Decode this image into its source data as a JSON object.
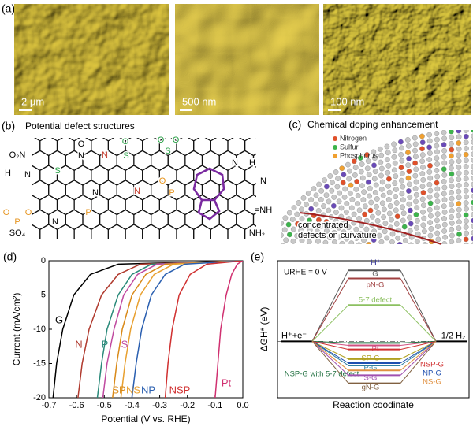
{
  "figure": {
    "a": {
      "label": "(a)",
      "scale_bars": [
        "2 μm",
        "500 nm",
        "100 nm"
      ]
    },
    "b": {
      "label": "(b)",
      "title": "Potential defect structures",
      "atoms": [
        {
          "text": "O₂N",
          "color": "#000000"
        },
        {
          "text": "O",
          "color": "#000000"
        },
        {
          "text": "N",
          "color": "#000000"
        },
        {
          "text": "N",
          "color": "#c0392b"
        },
        {
          "text": "O",
          "color": "#27a045"
        },
        {
          "text": "S",
          "color": "#27a045"
        },
        {
          "text": "O",
          "color": "#27a045"
        },
        {
          "text": "S",
          "color": "#27a045"
        },
        {
          "text": "O",
          "color": "#27a045"
        },
        {
          "text": "S",
          "color": "#27a045"
        },
        {
          "text": "H",
          "color": "#000000"
        },
        {
          "text": "N",
          "color": "#000000"
        },
        {
          "text": "N",
          "color": "#000000"
        },
        {
          "text": "N",
          "color": "#c0392b"
        },
        {
          "text": "O",
          "color": "#e69520"
        },
        {
          "text": "P",
          "color": "#e69520"
        },
        {
          "text": "O",
          "color": "#e69520"
        },
        {
          "text": "N",
          "color": "#000000"
        },
        {
          "text": "P",
          "color": "#e69520"
        },
        {
          "text": "O",
          "color": "#e69520"
        },
        {
          "text": "P",
          "color": "#e69520"
        },
        {
          "text": "N",
          "color": "#000000"
        },
        {
          "text": "H",
          "color": "#000000"
        },
        {
          "text": "N",
          "color": "#000000"
        },
        {
          "text": "=NH",
          "color": "#000000"
        },
        {
          "text": "NH₂",
          "color": "#000000"
        },
        {
          "text": "SO₄",
          "color": "#000000"
        }
      ]
    },
    "c": {
      "label": "(c)",
      "title": "Chemical doping enhancement",
      "legend": [
        {
          "name": "Nitrogen",
          "color": "#e0502a"
        },
        {
          "name": "Sulfur",
          "color": "#3cb44b"
        },
        {
          "name": "Phosphorus",
          "color": "#f0a030"
        }
      ],
      "annotation": [
        "concentrated",
        "defects on curvature"
      ]
    },
    "d": {
      "label": "(d)"
    },
    "e": {
      "label": "(e)"
    }
  },
  "chart_data": [
    {
      "type": "line",
      "x_label": "Potential (V vs. RHE)",
      "y_label": "Current (mA/cm²)",
      "xlim": [
        -0.7,
        0.0
      ],
      "ylim": [
        -20,
        0
      ],
      "xticks": [
        -0.7,
        -0.6,
        -0.5,
        -0.4,
        -0.3,
        -0.2,
        -0.1,
        {
          "value": 0,
          "label": "0.0"
        }
      ],
      "yticks": [
        0,
        -5,
        -10,
        -15,
        -20
      ],
      "series": [
        {
          "name": "G",
          "color": "#000000",
          "x": [
            -0.685,
            -0.672,
            -0.65,
            -0.61,
            -0.55,
            -0.45,
            0.0
          ],
          "values": [
            -20,
            -15,
            -10,
            -5,
            -2,
            -0.5,
            0
          ]
        },
        {
          "name": "N",
          "color": "#b03a2e",
          "x": [
            -0.595,
            -0.58,
            -0.555,
            -0.51,
            -0.45,
            -0.37,
            0.0
          ],
          "values": [
            -20,
            -15,
            -10,
            -5,
            -2,
            -0.5,
            0
          ]
        },
        {
          "name": "P",
          "color": "#2a8a7a",
          "x": [
            -0.525,
            -0.51,
            -0.49,
            -0.45,
            -0.4,
            -0.33,
            0.0
          ],
          "values": [
            -20,
            -15,
            -10,
            -5,
            -2,
            -0.5,
            0
          ]
        },
        {
          "name": "S",
          "color": "#c04aa0",
          "x": [
            -0.505,
            -0.49,
            -0.465,
            -0.43,
            -0.38,
            -0.31,
            0.0
          ],
          "values": [
            -20,
            -15,
            -10,
            -5,
            -2,
            -0.5,
            0
          ]
        },
        {
          "name": "SP",
          "color": "#d98a1a",
          "x": [
            -0.47,
            -0.455,
            -0.435,
            -0.4,
            -0.35,
            -0.28,
            0.0
          ],
          "values": [
            -20,
            -15,
            -10,
            -5,
            -2,
            -0.5,
            0
          ]
        },
        {
          "name": "NS",
          "color": "#e8a030",
          "x": [
            -0.44,
            -0.425,
            -0.405,
            -0.37,
            -0.32,
            -0.25,
            0.0
          ],
          "values": [
            -20,
            -15,
            -10,
            -5,
            -2,
            -0.5,
            0
          ]
        },
        {
          "name": "NP",
          "color": "#2a5fb0",
          "x": [
            -0.4,
            -0.385,
            -0.365,
            -0.33,
            -0.28,
            -0.21,
            0.0
          ],
          "values": [
            -20,
            -15,
            -10,
            -5,
            -2,
            -0.5,
            0
          ]
        },
        {
          "name": "NSP",
          "color": "#d03030",
          "x": [
            -0.28,
            -0.27,
            -0.255,
            -0.23,
            -0.19,
            -0.13,
            0.0
          ],
          "values": [
            -20,
            -15,
            -10,
            -5,
            -2,
            -0.5,
            0
          ]
        },
        {
          "name": "Pt",
          "color": "#d03070",
          "x": [
            -0.1,
            -0.09,
            -0.08,
            -0.06,
            -0.04,
            -0.02,
            0.0
          ],
          "values": [
            -20,
            -15,
            -10,
            -5,
            -2,
            -0.5,
            0
          ]
        }
      ]
    },
    {
      "type": "energy",
      "x_label": "Reaction coodinate",
      "y_label": "ΔGH* (eV)",
      "annotation": "URHE = 0 V",
      "states": [
        "H⁺+e⁻",
        "H*",
        "1/2 H₂"
      ],
      "ylim": [
        -0.7,
        1.0
      ],
      "series": [
        {
          "name": "G",
          "color": "#555555",
          "value": 0.88
        },
        {
          "name": "pN-G",
          "color": "#a04040",
          "value": 0.78
        },
        {
          "name": "5-7 defect",
          "color": "#8cc060",
          "value": 0.45
        },
        {
          "name": "Pt",
          "color": "#d05080",
          "value": -0.05
        },
        {
          "name": "NSP-G with 5-7 defect",
          "color": "#207040",
          "value": -0.02
        },
        {
          "name": "SP-G",
          "color": "#b0a020",
          "value": -0.22
        },
        {
          "name": "P-G",
          "color": "#3080a0",
          "value": -0.3
        },
        {
          "name": "S-G",
          "color": "#a050b0",
          "value": -0.42
        },
        {
          "name": "gN-G",
          "color": "#806040",
          "value": -0.52
        },
        {
          "name": "NSP-G",
          "color": "#d03030",
          "value": -0.1
        },
        {
          "name": "NP-G",
          "color": "#2050b0",
          "value": -0.27
        },
        {
          "name": "NS-G",
          "color": "#e09040",
          "value": -0.36
        }
      ]
    }
  ]
}
